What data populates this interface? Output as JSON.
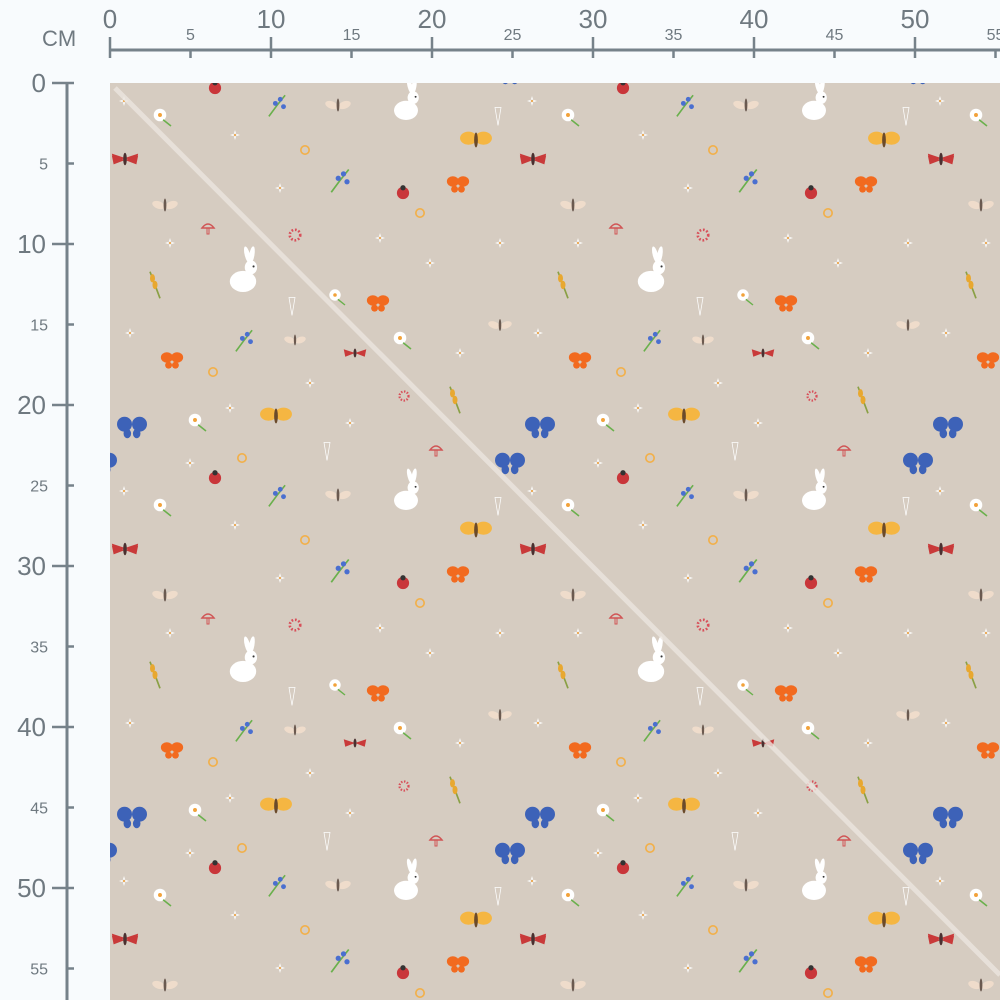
{
  "ruler": {
    "unit": "CM",
    "top": {
      "major_labels": [
        "0",
        "10",
        "20",
        "30",
        "40",
        "50"
      ],
      "minor_labels": [
        "5",
        "15",
        "25",
        "35",
        "45",
        "55"
      ]
    },
    "left": {
      "major_labels": [
        "0",
        "10",
        "20",
        "30",
        "40",
        "50"
      ],
      "minor_labels": [
        "5",
        "15",
        "25",
        "35",
        "45",
        "55"
      ]
    }
  },
  "fabric": {
    "background_color": "#d6ccc1",
    "motifs": [
      "rabbit",
      "ladybug",
      "red-moth",
      "orange-butterfly",
      "yellow-butterfly",
      "blue-butterfly",
      "daisy",
      "white-flower",
      "bluebell",
      "wheat",
      "mushroom",
      "red-flower",
      "carrot",
      "beige-moth",
      "orange-flower"
    ]
  },
  "colors": {
    "ruler": "#76828a",
    "page_background": "#f8fbfd"
  }
}
